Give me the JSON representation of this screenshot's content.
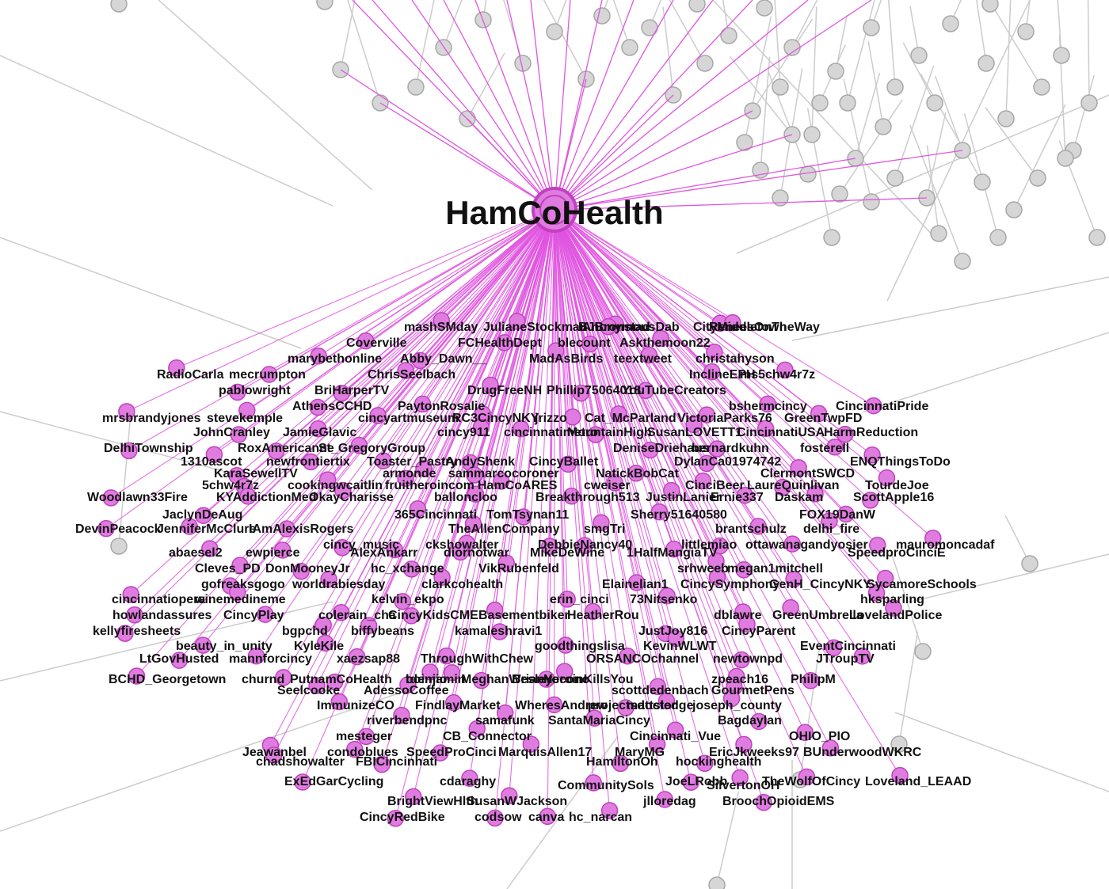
{
  "colors": {
    "background": "#ffffff",
    "hub_edge": "#e055e0",
    "hub_node_fill": "#e07ce0",
    "hub_node_stroke": "#c040c0",
    "other_node_fill": "#d6d6d6",
    "other_node_stroke": "#a8a8a8",
    "other_edge": "#cccccc",
    "label": "#111111"
  },
  "hub": {
    "label": "HamCoHealth"
  },
  "nodes": [
    "mashSMday",
    "JulianeStockman",
    "BJBronstad",
    "AnonymousDab",
    "CityMiddletown",
    "ReneesOnTheWay",
    "Coverville",
    "FCHealthDept",
    "blecount",
    "Askthemoon22",
    "marybethonline",
    "Abby_Dawn__",
    "MadAsBirds",
    "teextweet",
    "christahyson",
    "RadioCarla",
    "mecrumpton",
    "ChrisSeelbach",
    "InclineEPH",
    "ms5chw4r7z",
    "pablowright",
    "BriHarperTV",
    "DrugFreeNH",
    "Phillip75064018",
    "YouTubeCreators",
    "AthensCCHD",
    "PaytonRosalie",
    "bshermcincy",
    "CincinnatiPride",
    "mrsbrandyjones",
    "stevekemple",
    "cincyartmuseum",
    "RC3CincyNKY",
    "jrizzo",
    "Cat_McParland",
    "VictoriaParks76",
    "GreenTwpFD",
    "JohnCranley",
    "JamieGlavic",
    "cincy911",
    "cincinnatimetro",
    "MountainHigh",
    "SusanLOVETT1",
    "CincinnatiUSA",
    "HarmReduction",
    "DelhiTownship",
    "RoxAmericanne",
    "St_GregoryGroup",
    "DeniseDriehaus",
    "bernardkuhn",
    "fosterell",
    "1310ascot",
    "newfrontiertix",
    "Toaster_Pastry",
    "AndyShenk",
    "CincyBallet",
    "DylanCa01974742",
    "ENQThingsToDo",
    "KaraSewellTV",
    "armonde",
    "sammarcocoroner",
    "NatickBobCat",
    "ClermontSWCD",
    "5chw4r7z",
    "cookingwcaitlin",
    "fruitheroincom",
    "HamCoARES",
    "cweiser",
    "CinciBeer",
    "LaureQuinlivan",
    "TourdeJoe",
    "Woodlawn33Fire",
    "KYAddictionMed",
    "OkayCharisse",
    "balloncloo",
    "Breakthrough513",
    "JustinLanier",
    "Ernie337",
    "Daskam",
    "ScottApple16",
    "JaclynDeAug",
    "365Cincinnati",
    "TomTsynan11",
    "Sherry51640580",
    "FOX19DanW",
    "DevinPeacock",
    "JenniferMcClure",
    "IAmAlexisRogers",
    "TheAllenCompany",
    "smgTri",
    "brantschulz",
    "delhi_fire",
    "cincy_music",
    "ckshowalter",
    "DebbieNancy40",
    "littlemiao",
    "ottawanagandyosier",
    "mauromoncadaf",
    "abaesel2",
    "ewpierce",
    "AlexAnkarr",
    "diornotwar",
    "MikeDeWine",
    "1HalfMangiaTV",
    "SpeedproCinciE",
    "Cleves_PD",
    "DonMooneyJr",
    "hc_xchange",
    "VikRubenfeld",
    "srhweeb",
    "megan1mitchell",
    "gofreaksgogo",
    "worldrabiesday",
    "clarkcohealth",
    "Elainelian1",
    "CincySymphony",
    "GenH_CincyNKY",
    "SycamoreSchools",
    "cincinnatiopera",
    "winemedineme",
    "kelvin_ekpo",
    "erin_cinci",
    "73Nitsenko",
    "hksparling",
    "howlandassures",
    "CincyPlay",
    "colerain_cha",
    "CincyKidsCME",
    "Basementbiker",
    "HeatherRou",
    "dblawre",
    "GreenUmbrella",
    "LovelandPolice",
    "kellyfiresheets",
    "bgpchd",
    "biffybeans",
    "kamaleshravi1",
    "JustJoy816",
    "CincyParent",
    "beauty_in_unity",
    "KyleKile",
    "goodthingslisa",
    "KevinWLWT",
    "EventCincinnati",
    "LtGovHusted",
    "mannforcincy",
    "xaezsap88",
    "ThroughWithChew",
    "ORSANCOchannel",
    "newtownpd",
    "JTroupTV",
    "BCHD_Georgetown",
    "churnd",
    "PutnamCoHealth",
    "boinjamin",
    "BrianYocono",
    "zpeach16",
    "PhilipM",
    "tdemio",
    "MeghanWesley",
    "HeroinKillsYou",
    "Seelcooke",
    "AdessoCoffee",
    "scottdedenbach",
    "GourmetPens",
    "ImmunizeCO",
    "FindlayMarket",
    "WheresAndrew",
    "projectsdoctor",
    "mattsledge",
    "joseph_county",
    "riverbendpnc",
    "samafunk",
    "SantaMariaCincy",
    "Bagdaylan",
    "mesteger",
    "CB_Connector",
    "Cincinnati_Vue",
    "OHIO_PIO",
    "Jeawanbel",
    "condoblues",
    "SpeedProCinci",
    "MarquisAllen17",
    "MaryMG",
    "EricJkweeks97",
    "BUnderwoodWKRC",
    "chadshowalter",
    "FBICincinnati",
    "HamiltonOh",
    "hockinghealth",
    "ExEdGarCycling",
    "cdaraghy",
    "JoeLRobb",
    "TheWolfOfCincy",
    "Loveland_LEAAD",
    "CommunitySols",
    "SilvertonOH",
    "BrightViewHlth",
    "SusanWJackson",
    "jlloredag",
    "BroochOpioidEMS",
    "CincyRedBike",
    "codsow",
    "canva",
    "hc_narcan"
  ]
}
